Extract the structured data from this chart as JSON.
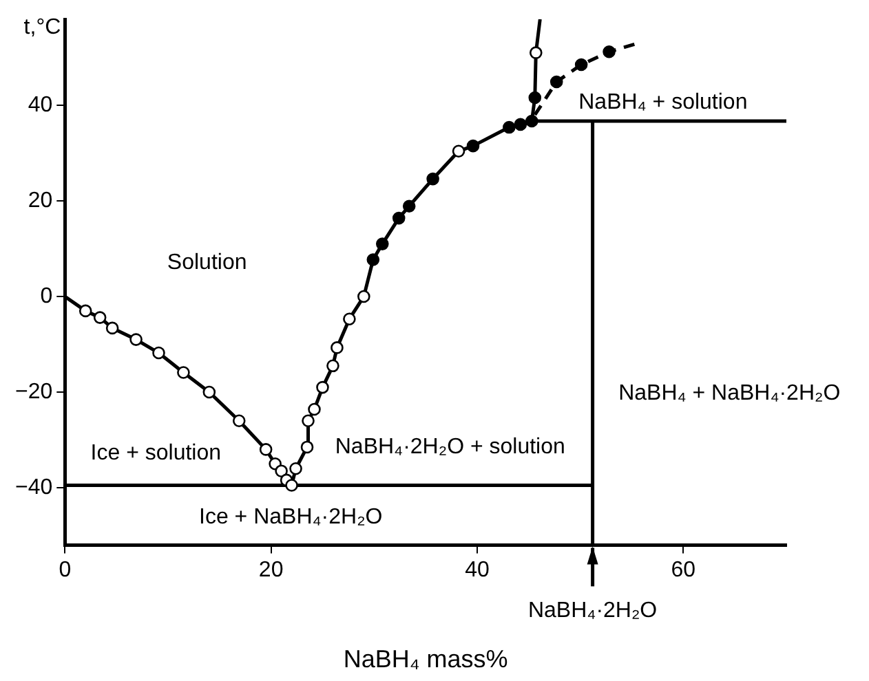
{
  "chart_data": {
    "type": "line",
    "xlabel": "NaBH₄ mass%",
    "ylabel": "t,°C",
    "xlim": [
      0,
      70
    ],
    "xticks": [
      0,
      20,
      40,
      60
    ],
    "ylim": [
      -52,
      58
    ],
    "yticks": [
      -40,
      -20,
      0,
      20,
      40
    ],
    "grid": false,
    "legend": false,
    "series": [
      {
        "type": "line",
        "color": "#000000",
        "marker": "none",
        "x": [
          0,
          2.0,
          3.4,
          4.6,
          6.9,
          9.1,
          11.5,
          14.0,
          16.9,
          19.5,
          20.4,
          21.0,
          21.5,
          22.0
        ],
        "values": [
          0,
          -3,
          -4.4,
          -6.6,
          -9,
          -11.8,
          -15.9,
          -20,
          -26,
          -32,
          -35,
          -36.5,
          -38.4,
          -39.5
        ]
      },
      {
        "type": "line",
        "color": "#000000",
        "marker": "none",
        "x": [
          22.0,
          22.4,
          23.5,
          23.6,
          24.2,
          25.0,
          26.0,
          26.4,
          27.6,
          29.0,
          29.9,
          30.8,
          32.4,
          33.4,
          35.7,
          38.2,
          39.6,
          43.1,
          44.2,
          45.3
        ],
        "values": [
          -39.5,
          -36,
          -31.5,
          -26,
          -23.6,
          -19,
          -14.5,
          -10.7,
          -4.7,
          0,
          7.7,
          11,
          16.4,
          18.9,
          24.6,
          30.4,
          31.5,
          35.4,
          36,
          36.7
        ]
      },
      {
        "type": "line",
        "color": "#000000",
        "marker": "none",
        "x": [
          45.3,
          45.6,
          45.7,
          46.1
        ],
        "values": [
          36.7,
          41.6,
          51,
          58
        ]
      },
      {
        "type": "line",
        "color": "#000000",
        "marker": "none",
        "line_style": "dashed",
        "x": [
          45.6,
          47.7,
          50.1,
          52.8,
          55.3
        ],
        "values": [
          38,
          44.9,
          48.5,
          51.2,
          52.8
        ]
      },
      {
        "type": "line",
        "color": "#000000",
        "marker": "none",
        "x": [
          0,
          51.2
        ],
        "values": [
          -39.5,
          -39.5
        ]
      },
      {
        "type": "line",
        "color": "#000000",
        "marker": "none",
        "x": [
          45.3,
          70
        ],
        "values": [
          36.7,
          36.7
        ]
      },
      {
        "type": "line",
        "color": "#000000",
        "marker": "none",
        "x": [
          51.2,
          51.2
        ],
        "values": [
          -52,
          36.7
        ]
      },
      {
        "type": "scatter",
        "color": "#ffffff",
        "marker": "circle",
        "x": [
          2.0,
          3.4,
          4.6,
          6.9,
          9.1,
          11.5,
          14.0,
          16.9,
          19.5,
          20.4,
          21.0,
          21.5,
          22.0,
          22.4,
          23.5,
          23.6,
          24.2,
          25.0,
          26.0,
          26.4,
          27.6,
          29.0,
          38.2,
          45.7
        ],
        "values": [
          -3,
          -4.4,
          -6.6,
          -9,
          -11.8,
          -15.9,
          -20,
          -26,
          -32,
          -35,
          -36.5,
          -38.4,
          -39.5,
          -36,
          -31.5,
          -26,
          -23.6,
          -19,
          -14.5,
          -10.7,
          -4.7,
          0,
          30.4,
          51
        ]
      },
      {
        "type": "scatter",
        "color": "#000000",
        "marker": "circle",
        "x": [
          29.9,
          30.8,
          32.4,
          33.4,
          35.7,
          39.6,
          43.1,
          44.2,
          45.3,
          45.6,
          47.7,
          50.1,
          52.8
        ],
        "values": [
          7.7,
          11,
          16.4,
          18.9,
          24.6,
          31.5,
          35.4,
          36,
          36.7,
          41.6,
          44.9,
          48.5,
          51.2
        ]
      }
    ],
    "annotations": [
      "Solution",
      "Ice + solution",
      "NaBH₄·2H₂O + solution",
      "Ice + NaBH₄·2H₂O",
      "NaBH₄ + solution",
      "NaBH₄ + NaBH₄·2H₂O",
      {
        "text": "NaBH₄·2H₂O",
        "x": 51.2,
        "y": -52
      }
    ]
  }
}
